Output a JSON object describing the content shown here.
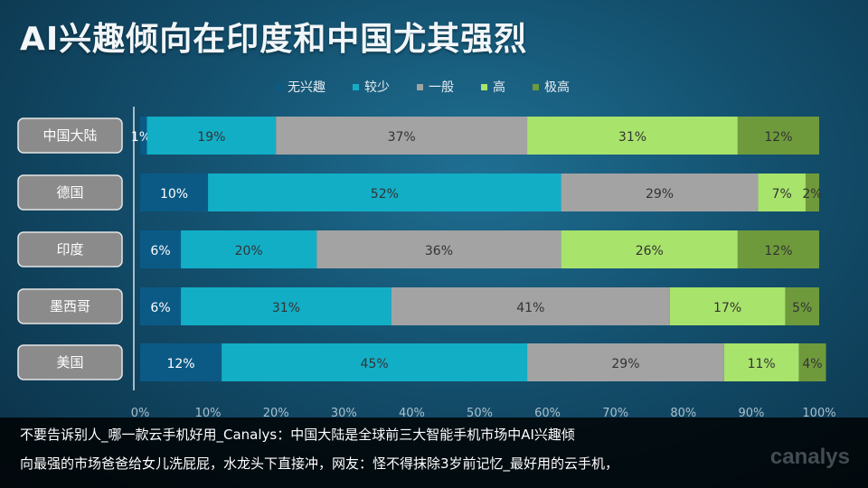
{
  "title": "AI兴趣倾向在印度和中国尤其强烈",
  "legend": [
    {
      "label": "无兴趣",
      "color": "#0b5a86"
    },
    {
      "label": "较少",
      "color": "#12aec6"
    },
    {
      "label": "一般",
      "color": "#a3a3a3"
    },
    {
      "label": "高",
      "color": "#a8e36b"
    },
    {
      "label": "极高",
      "color": "#6e9a3c"
    }
  ],
  "caption": {
    "line1": "不要告诉别人_哪一款云手机好用_Canalys：中国大陆是全球前三大智能手机市场中AI兴趣倾",
    "line2": "向最强的市场爸爸给女儿洗屁屁，水龙头下直接冲，网友：怪不得抹除3岁前记忆_最好用的云手机，"
  },
  "watermark": "canalys",
  "chart_data": {
    "type": "bar",
    "stacked": true,
    "orientation": "horizontal",
    "percent": true,
    "categories": [
      "中国大陆",
      "德国",
      "印度",
      "墨西哥",
      "美国"
    ],
    "series": [
      {
        "name": "无兴趣",
        "color": "#0b5a86",
        "values": [
          1,
          10,
          6,
          6,
          12
        ]
      },
      {
        "name": "较少",
        "color": "#12aec6",
        "values": [
          19,
          52,
          20,
          31,
          45
        ]
      },
      {
        "name": "一般",
        "color": "#a3a3a3",
        "values": [
          37,
          29,
          36,
          41,
          29
        ]
      },
      {
        "name": "高",
        "color": "#a8e36b",
        "values": [
          31,
          7,
          26,
          17,
          11
        ]
      },
      {
        "name": "极高",
        "color": "#6e9a3c",
        "values": [
          12,
          2,
          12,
          5,
          4
        ]
      }
    ],
    "xlim": [
      0,
      100
    ],
    "xticks": [
      "0%",
      "10%",
      "20%",
      "30%",
      "40%",
      "50%",
      "60%",
      "70%",
      "80%",
      "90%",
      "100%"
    ],
    "legend_position": "top",
    "grid": false
  }
}
